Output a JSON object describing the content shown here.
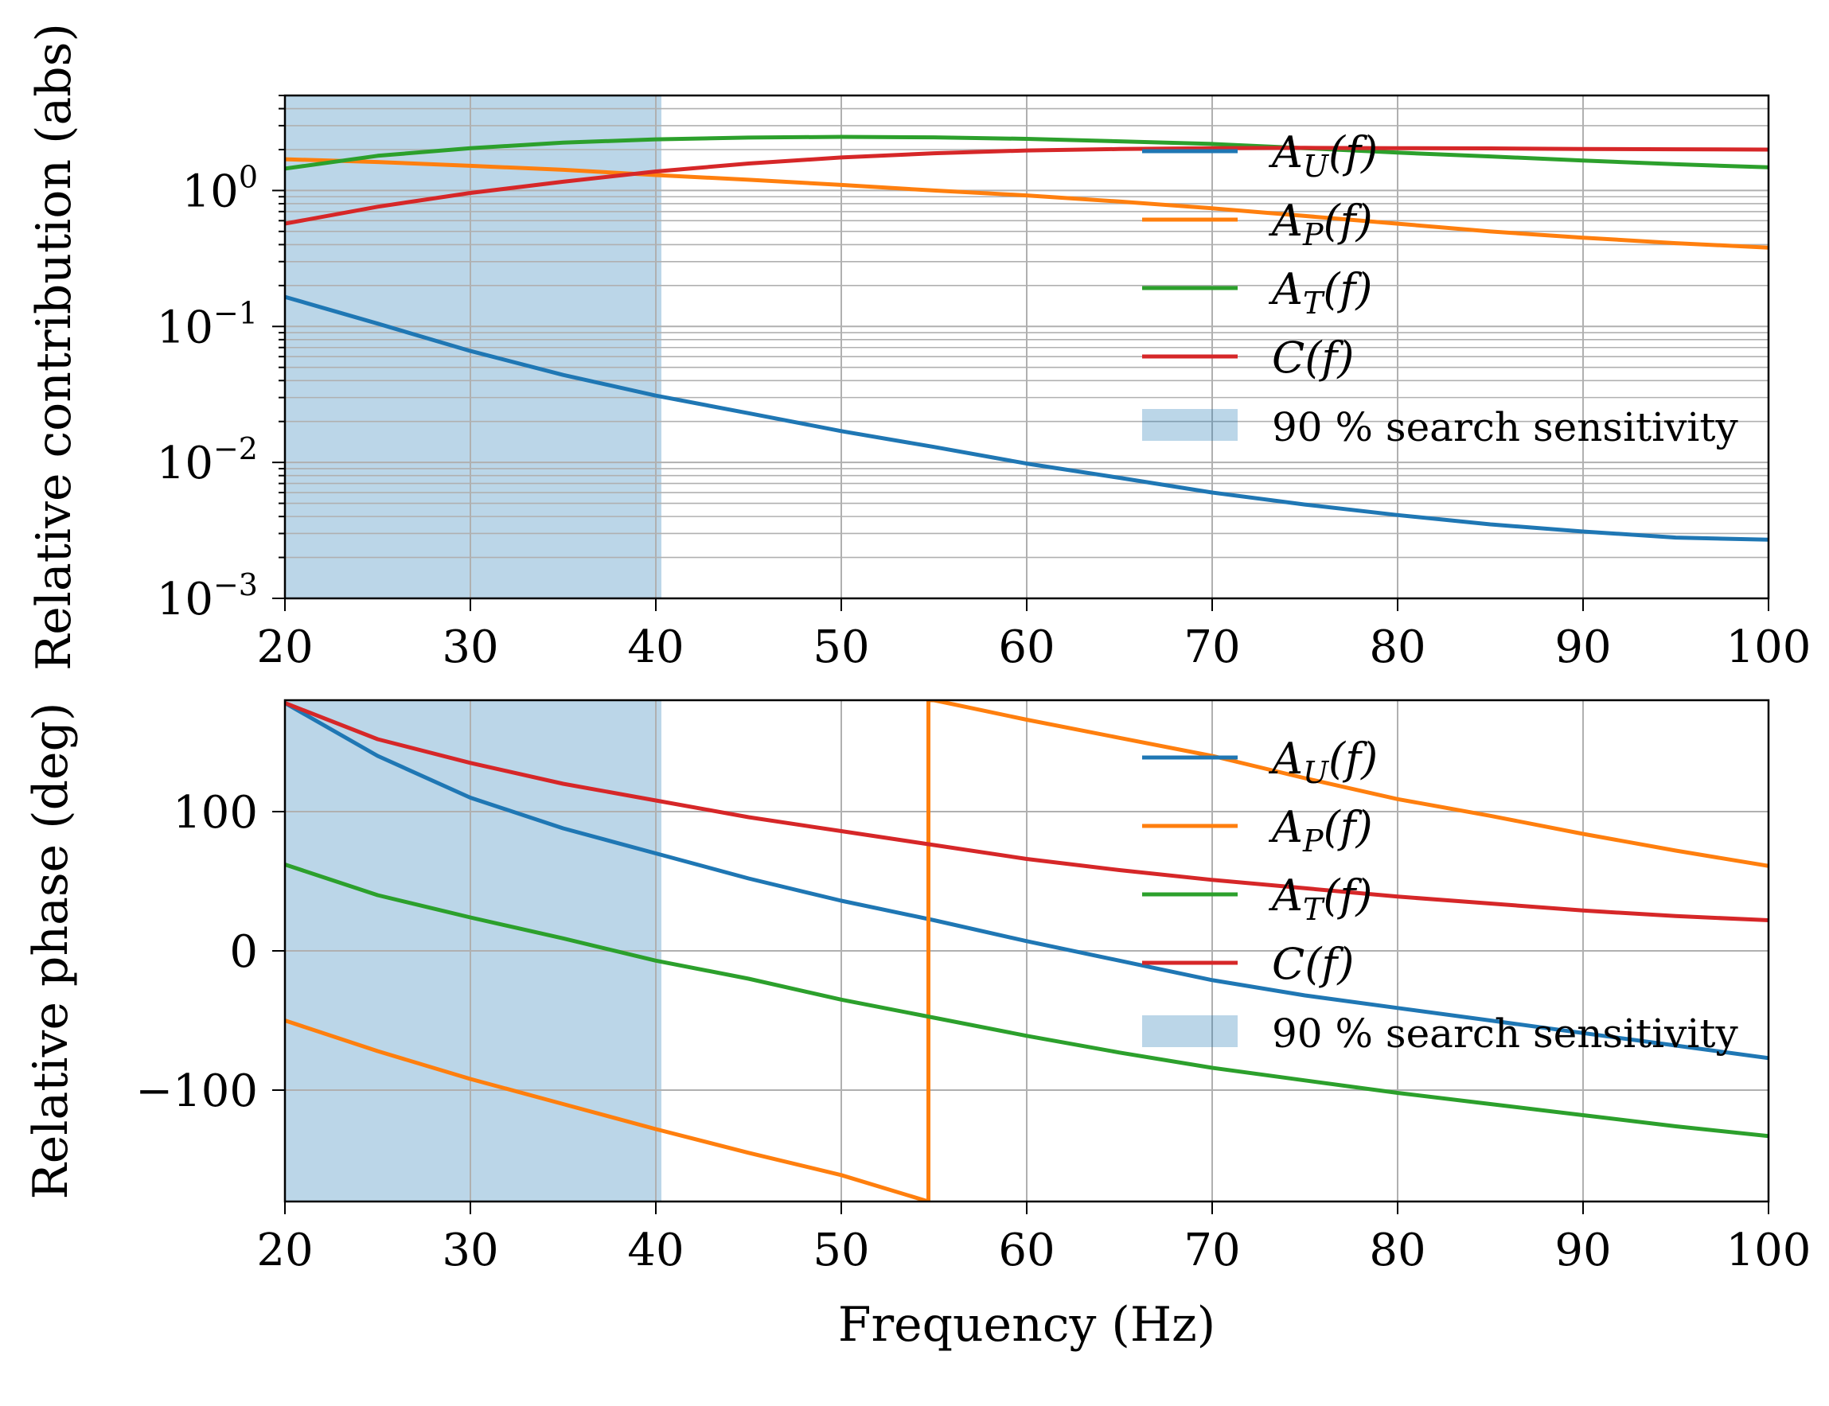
{
  "chart_data": [
    {
      "type": "line",
      "panel": "top",
      "ylabel": "Relative contribution (abs)",
      "xlabel": "",
      "yscale": "log",
      "xlim": [
        20,
        100
      ],
      "ylim": [
        0.001,
        5
      ],
      "grid": true,
      "legend_position": "upper-right",
      "x_ticks": [
        "20",
        "30",
        "40",
        "50",
        "60",
        "70",
        "80",
        "90",
        "100"
      ],
      "y_ticks": [
        {
          "value": 0.001,
          "base": "10",
          "exp": "−3"
        },
        {
          "value": 0.01,
          "base": "10",
          "exp": "−2"
        },
        {
          "value": 0.1,
          "base": "10",
          "exp": "−1"
        },
        {
          "value": 1,
          "base": "10",
          "exp": "0"
        }
      ],
      "shaded_region": {
        "label": "90 % search sensitivity",
        "x": [
          20,
          40.3
        ],
        "color": "#1f77b4"
      },
      "x": [
        20,
        25,
        30,
        35,
        40,
        45,
        50,
        55,
        60,
        65,
        70,
        75,
        80,
        85,
        90,
        95,
        100
      ],
      "series": [
        {
          "name": "A_U(f)",
          "var": "A",
          "sub": "U",
          "color": "#1f77b4",
          "values": [
            0.165,
            0.105,
            0.066,
            0.044,
            0.031,
            0.023,
            0.017,
            0.013,
            0.0098,
            0.0077,
            0.006,
            0.0049,
            0.0041,
            0.0035,
            0.0031,
            0.0028,
            0.0027
          ]
        },
        {
          "name": "A_P(f)",
          "var": "A",
          "sub": "P",
          "color": "#ff7f0e",
          "values": [
            1.7,
            1.62,
            1.52,
            1.42,
            1.3,
            1.2,
            1.1,
            1.0,
            0.92,
            0.83,
            0.74,
            0.65,
            0.57,
            0.5,
            0.45,
            0.41,
            0.38
          ]
        },
        {
          "name": "A_T(f)",
          "var": "A",
          "sub": "T",
          "color": "#2ca02c",
          "values": [
            1.45,
            1.8,
            2.05,
            2.25,
            2.38,
            2.45,
            2.48,
            2.46,
            2.4,
            2.3,
            2.2,
            2.05,
            1.9,
            1.78,
            1.66,
            1.56,
            1.48
          ]
        },
        {
          "name": "C(f)",
          "var": "C",
          "sub": "",
          "color": "#d62728",
          "values": [
            0.57,
            0.76,
            0.96,
            1.16,
            1.38,
            1.58,
            1.75,
            1.88,
            1.97,
            2.02,
            2.05,
            2.06,
            2.05,
            2.04,
            2.02,
            2.01,
            2.0
          ]
        }
      ]
    },
    {
      "type": "line",
      "panel": "bottom",
      "ylabel": "Relative phase (deg)",
      "xlabel": "Frequency (Hz)",
      "yscale": "linear",
      "xlim": [
        20,
        100
      ],
      "ylim": [
        -180,
        180
      ],
      "grid": true,
      "legend_position": "upper-right",
      "x_ticks": [
        "20",
        "30",
        "40",
        "50",
        "60",
        "70",
        "80",
        "90",
        "100"
      ],
      "y_ticks": [
        {
          "value": -100,
          "label": "−100"
        },
        {
          "value": 0,
          "label": "0"
        },
        {
          "value": 100,
          "label": "100"
        }
      ],
      "shaded_region": {
        "label": "90 % search sensitivity",
        "x": [
          20,
          40.3
        ],
        "color": "#1f77b4"
      },
      "series": [
        {
          "name": "A_U(f)",
          "var": "A",
          "sub": "U",
          "color": "#1f77b4",
          "x": [
            20,
            25,
            30,
            35,
            40,
            45,
            50,
            55,
            60,
            65,
            70,
            75,
            80,
            85,
            90,
            95,
            100
          ],
          "values": [
            178,
            140,
            110,
            88,
            70,
            52,
            36,
            22,
            7,
            -7,
            -21,
            -32,
            -41,
            -50,
            -59,
            -68,
            -77
          ]
        },
        {
          "name": "A_P(f)",
          "var": "A",
          "sub": "P",
          "color": "#ff7f0e",
          "x": [
            20,
            25,
            30,
            35,
            40,
            45,
            50,
            54.7,
            54.7,
            55,
            60,
            65,
            70,
            75,
            80,
            85,
            90,
            95,
            100
          ],
          "values": [
            -50,
            -72,
            -92,
            -110,
            -128,
            -145,
            -161,
            -180,
            180,
            180,
            166,
            153,
            140,
            124,
            109,
            97,
            84,
            72,
            61
          ]
        },
        {
          "name": "A_T(f)",
          "var": "A",
          "sub": "T",
          "color": "#2ca02c",
          "x": [
            20,
            25,
            30,
            35,
            40,
            45,
            50,
            55,
            60,
            65,
            70,
            75,
            80,
            85,
            90,
            95,
            100
          ],
          "values": [
            62,
            40,
            24,
            9,
            -7,
            -20,
            -35,
            -48,
            -61,
            -73,
            -84,
            -93,
            -102,
            -110,
            -118,
            -126,
            -133
          ]
        },
        {
          "name": "C(f)",
          "var": "C",
          "sub": "",
          "color": "#d62728",
          "x": [
            20,
            25,
            30,
            35,
            40,
            45,
            50,
            55,
            60,
            65,
            70,
            75,
            80,
            85,
            90,
            95,
            100
          ],
          "values": [
            178,
            152,
            135,
            120,
            108,
            96,
            86,
            76,
            66,
            58,
            51,
            45,
            39,
            34,
            29,
            25,
            22
          ]
        }
      ]
    }
  ]
}
